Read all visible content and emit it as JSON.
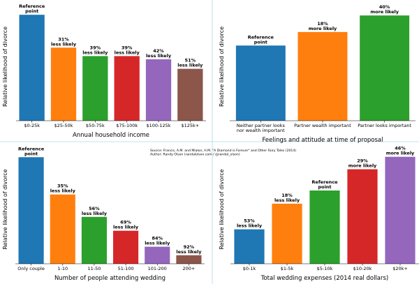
{
  "source": {
    "line1": "Source: Francis, A.M. and Mialon, H.M. \"A Diamond is Forever\" and Other Fairy Tales (2014)",
    "line2": "Author: Randy Olson (randalolson.com / @randal_olson)"
  },
  "divider_color": "#add8e6",
  "chart_data": [
    {
      "type": "bar",
      "title": "",
      "xlabel": "Annual household income",
      "ylabel": "Relative likelihood of divorce",
      "categories": [
        "$0-25k",
        "$25-50k",
        "$50-75k",
        "$75-100k",
        "$100-125k",
        "$125k+"
      ],
      "category_lines": [
        [
          "$0-25k"
        ],
        [
          "$25-50k"
        ],
        [
          "$50-75k"
        ],
        [
          "$75-100k"
        ],
        [
          "$100-125k"
        ],
        [
          "$125k+"
        ]
      ],
      "values": [
        1.0,
        0.69,
        0.61,
        0.61,
        0.58,
        0.49
      ],
      "annotations": [
        [
          "Reference",
          "point"
        ],
        [
          "31%",
          "less likely"
        ],
        [
          "39%",
          "less likely"
        ],
        [
          "39%",
          "less likely"
        ],
        [
          "42%",
          "less likely"
        ],
        [
          "51%",
          "less likely"
        ]
      ],
      "colors": [
        "#1f77b4",
        "#ff7f0e",
        "#2ca02c",
        "#d62728",
        "#9467bd",
        "#8c564b"
      ],
      "ylim": [
        0,
        1.1
      ],
      "grid": false,
      "legend": "none"
    },
    {
      "type": "bar",
      "title": "",
      "xlabel": "Feelings and attitude at time of proposal",
      "ylabel": "Relative likelihood of divorce",
      "categories": [
        "Neither partner looks nor wealth important",
        "Partner wealth important",
        "Partner looks important"
      ],
      "category_lines": [
        [
          "Neither partner looks",
          "nor wealth important"
        ],
        [
          "Partner wealth important"
        ],
        [
          "Partner looks important"
        ]
      ],
      "values": [
        1.0,
        1.18,
        1.4
      ],
      "annotations": [
        [
          "Reference",
          "point"
        ],
        [
          "18%",
          "more likely"
        ],
        [
          "40%",
          "more likely"
        ]
      ],
      "colors": [
        "#1f77b4",
        "#ff7f0e",
        "#2ca02c"
      ],
      "ylim": [
        0,
        1.55
      ],
      "grid": false,
      "legend": "none"
    },
    {
      "type": "bar",
      "title": "",
      "xlabel": "Number of people attending wedding",
      "ylabel": "Relative likelihood of divorce",
      "categories": [
        "Only couple",
        "1-10",
        "11-50",
        "51-100",
        "101-200",
        "200+"
      ],
      "category_lines": [
        [
          "Only couple"
        ],
        [
          "1-10"
        ],
        [
          "11-50"
        ],
        [
          "51-100"
        ],
        [
          "101-200"
        ],
        [
          "200+"
        ]
      ],
      "values": [
        1.0,
        0.65,
        0.44,
        0.31,
        0.16,
        0.08
      ],
      "annotations": [
        [
          "Reference",
          "point"
        ],
        [
          "35%",
          "less likely"
        ],
        [
          "56%",
          "less likely"
        ],
        [
          "69%",
          "less likely"
        ],
        [
          "84%",
          "less likely"
        ],
        [
          "92%",
          "less likely"
        ]
      ],
      "colors": [
        "#1f77b4",
        "#ff7f0e",
        "#2ca02c",
        "#d62728",
        "#9467bd",
        "#8c564b"
      ],
      "ylim": [
        0,
        1.1
      ],
      "grid": false,
      "legend": "none"
    },
    {
      "type": "bar",
      "title": "",
      "xlabel": "Total wedding expenses (2014 real dollars)",
      "ylabel": "Relative likelihood of divorce",
      "categories": [
        "$0-1k",
        "$1-5k",
        "$5-10k",
        "$10-20k",
        "$20k+"
      ],
      "category_lines": [
        [
          "$0-1k"
        ],
        [
          "$1-5k"
        ],
        [
          "$5-10k"
        ],
        [
          "$10-20k"
        ],
        [
          "$20k+"
        ]
      ],
      "values": [
        0.47,
        0.82,
        1.0,
        1.29,
        1.46
      ],
      "annotations": [
        [
          "53%",
          "less likely"
        ],
        [
          "18%",
          "less likely"
        ],
        [
          "Reference",
          "point"
        ],
        [
          "29%",
          "more likely"
        ],
        [
          "46%",
          "more likely"
        ]
      ],
      "colors": [
        "#1f77b4",
        "#ff7f0e",
        "#2ca02c",
        "#d62728",
        "#9467bd"
      ],
      "ylim": [
        0,
        1.6
      ],
      "grid": false,
      "legend": "none"
    }
  ]
}
